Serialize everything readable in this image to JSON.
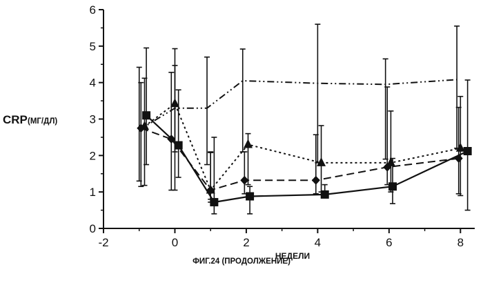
{
  "chart_data": {
    "type": "line",
    "title": "",
    "xlabel": "НЕДЕЛИ",
    "ylabel_main": "CRP",
    "ylabel_unit": "(МГ/ДЛ)",
    "xlim": [
      -2,
      8.4
    ],
    "ylim": [
      0,
      6
    ],
    "xticks": [
      -2,
      0,
      2,
      4,
      6,
      8
    ],
    "yticks": [
      0,
      1,
      2,
      3,
      4,
      5,
      6
    ],
    "grid": false,
    "series": [
      {
        "name": "dash-dot-dot",
        "marker": "none",
        "line": "dashdotdot",
        "x": [
          -1.0,
          0.0,
          0.9,
          1.9,
          4.0,
          5.9,
          7.9
        ],
        "y": [
          2.7,
          3.3,
          3.3,
          4.05,
          3.98,
          3.95,
          4.08
        ],
        "err_low": [
          1.3,
          2.1,
          1.75,
          2.1,
          1.8,
          1.9,
          2.2
        ],
        "err_high": [
          4.42,
          4.93,
          4.7,
          4.92,
          5.6,
          4.65,
          5.55
        ]
      },
      {
        "name": "triangle-dotted",
        "marker": "triangle",
        "line": "dotted",
        "x": [
          -0.85,
          0.0,
          1.0,
          2.05,
          4.1,
          6.05,
          8.0
        ],
        "y": [
          2.8,
          3.42,
          1.05,
          2.3,
          1.8,
          1.8,
          2.2
        ],
        "err_low": [
          1.18,
          1.05,
          0.72,
          1.2,
          1.0,
          1.0,
          0.9
        ],
        "err_high": [
          4.12,
          4.47,
          2.1,
          2.6,
          2.82,
          3.22,
          3.62
        ]
      },
      {
        "name": "diamond-dashed",
        "marker": "diamond",
        "line": "dashed",
        "x": [
          -0.95,
          -0.1,
          1.0,
          1.95,
          3.95,
          5.95,
          7.95
        ],
        "y": [
          2.75,
          2.45,
          1.05,
          1.32,
          1.32,
          1.68,
          1.92
        ],
        "err_low": [
          1.15,
          1.05,
          0.8,
          0.95,
          0.95,
          1.2,
          0.95
        ],
        "err_high": [
          4.0,
          4.28,
          2.08,
          2.1,
          2.57,
          3.88,
          3.32
        ]
      },
      {
        "name": "square-solid",
        "marker": "square",
        "line": "solid",
        "x": [
          -0.8,
          0.1,
          1.1,
          2.1,
          4.2,
          6.1,
          8.2
        ],
        "y": [
          3.1,
          2.28,
          0.72,
          0.88,
          0.93,
          1.15,
          2.12
        ],
        "err_low": [
          1.75,
          1.4,
          0.4,
          0.4,
          0.85,
          0.68,
          0.5
        ],
        "err_high": [
          4.95,
          3.8,
          2.5,
          1.15,
          1.2,
          1.92,
          4.07
        ]
      }
    ]
  },
  "figure": {
    "caption": "ФИГ.24 (ПРОДОЛЖЕНИЕ)"
  }
}
